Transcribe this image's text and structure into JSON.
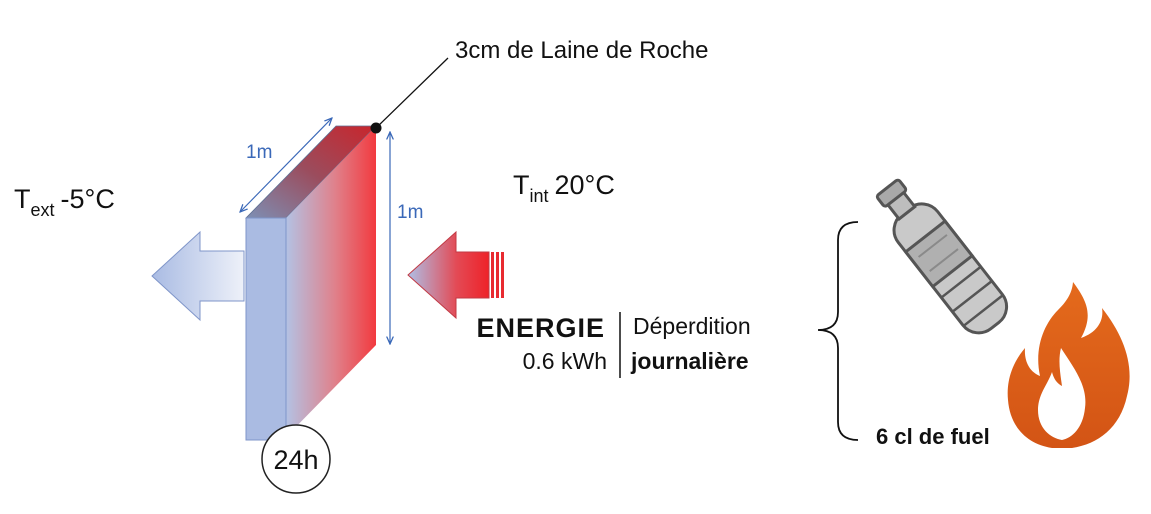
{
  "annotation": {
    "insulation_label": "3cm de Laine de Roche"
  },
  "temperatures": {
    "exterior": {
      "symbol": "T",
      "subscript": "ext",
      "value": "-5°C"
    },
    "interior": {
      "symbol": "T",
      "subscript": "int",
      "value": "20°C"
    }
  },
  "dimensions": {
    "width": "1m",
    "height": "1m"
  },
  "energy": {
    "title": "ENERGIE",
    "value": "0.6 kWh",
    "label_line1": "Déperdition",
    "label_line2": "journalière"
  },
  "duration_badge": "24h",
  "equivalent": {
    "label": "6 cl de fuel"
  },
  "icons": [
    "bottle-icon",
    "flame-icon"
  ],
  "colors": {
    "cold": "#aebfe6",
    "hot": "#f0363a",
    "dimension": "#3a68b8",
    "flame": "#d9621c"
  }
}
